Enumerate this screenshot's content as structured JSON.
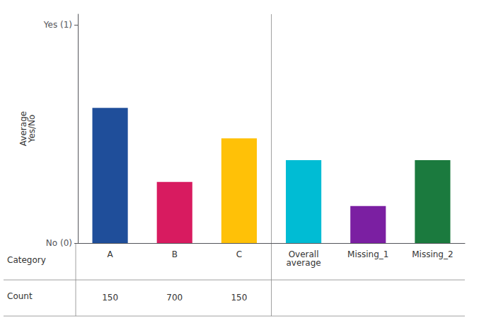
{
  "chart_data": {
    "type": "bar",
    "categories": [
      "A",
      "B",
      "C",
      "Overall\naverage",
      "Missing_1",
      "Missing_2"
    ],
    "values": [
      0.62,
      0.28,
      0.48,
      0.38,
      0.17,
      0.38
    ],
    "colors": [
      "#1F4E9A",
      "#D81B60",
      "#FFC107",
      "#00BCD4",
      "#7B1FA2",
      "#1B7A3E"
    ],
    "ylabel": "Average\nYes/No",
    "ylim": [
      0,
      1.05
    ],
    "yticks": [
      {
        "value": 0,
        "label": "No (0)"
      },
      {
        "value": 1,
        "label": "Yes (1)"
      }
    ],
    "grid": false,
    "row_labels": [
      "Category",
      "Count"
    ],
    "counts": [
      150,
      700,
      150,
      null,
      null,
      null
    ]
  }
}
